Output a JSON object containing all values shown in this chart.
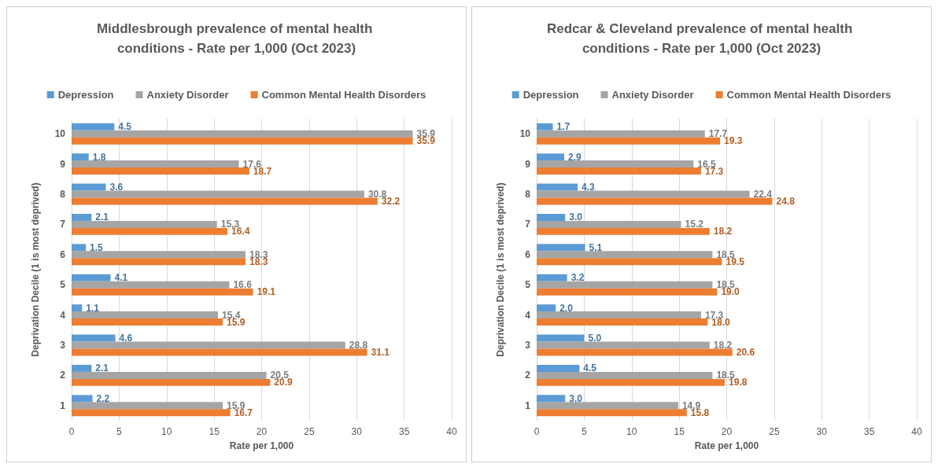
{
  "chart_data": [
    {
      "type": "bar",
      "orientation": "horizontal",
      "title": "Middlesbrough prevalence of mental health conditions - Rate per 1,000 (Oct 2023)",
      "xlabel": "Rate per 1,000",
      "ylabel": "Deprivation Decile (1 is most deprived)",
      "categories": [
        "10",
        "9",
        "8",
        "7",
        "6",
        "5",
        "4",
        "3",
        "2",
        "1"
      ],
      "xlim": [
        0,
        40
      ],
      "xticks": [
        0,
        5,
        10,
        15,
        20,
        25,
        30,
        35,
        40
      ],
      "grid": "x",
      "legend": "top",
      "series": [
        {
          "name": "Depression",
          "color": "#5b9bd5",
          "values": [
            4.5,
            1.8,
            3.6,
            2.1,
            1.5,
            4.1,
            1.1,
            4.6,
            2.1,
            2.2
          ],
          "value_labels": [
            "4.5",
            "1.8",
            "3.6",
            "2.1",
            "1.5",
            "4.1",
            "1.1",
            "4.6",
            "2.1",
            "2.2"
          ]
        },
        {
          "name": "Anxiety Disorder",
          "color": "#a5a5a5",
          "values": [
            35.9,
            17.6,
            30.8,
            15.3,
            18.3,
            16.6,
            15.4,
            28.8,
            20.5,
            15.9
          ],
          "value_labels": [
            "35.9",
            "17.6",
            "30.8",
            "15.3",
            "18.3",
            "16.6",
            "15.4",
            "28.8",
            "20.5",
            "15.9"
          ]
        },
        {
          "name": "Common Mental Health Disorders",
          "color": "#ed7d31",
          "values": [
            35.9,
            18.7,
            32.2,
            16.4,
            18.3,
            19.1,
            15.9,
            31.1,
            20.9,
            16.7
          ],
          "value_labels": [
            "35.9",
            "18.7",
            "32.2",
            "16.4",
            "18.3",
            "19.1",
            "15.9",
            "31.1",
            "20.9",
            "16.7"
          ]
        }
      ]
    },
    {
      "type": "bar",
      "orientation": "horizontal",
      "title": "Redcar & Cleveland prevalence of mental health conditions - Rate per 1,000 (Oct 2023)",
      "xlabel": "Rate per 1,000",
      "ylabel": "Deprivation Decile (1 is most deprived)",
      "categories": [
        "10",
        "9",
        "8",
        "7",
        "6",
        "5",
        "4",
        "3",
        "2",
        "1"
      ],
      "xlim": [
        0,
        40
      ],
      "xticks": [
        0,
        5,
        10,
        15,
        20,
        25,
        30,
        35,
        40
      ],
      "grid": "x",
      "legend": "top",
      "series": [
        {
          "name": "Depression",
          "color": "#5b9bd5",
          "values": [
            1.7,
            2.9,
            4.3,
            3.0,
            5.1,
            3.2,
            2.0,
            5.0,
            4.5,
            3.0
          ],
          "value_labels": [
            "1.7",
            "2.9",
            "4.3",
            "3.0",
            "5.1",
            "3.2",
            "2.0",
            "5.0",
            "4.5",
            "3.0"
          ]
        },
        {
          "name": "Anxiety Disorder",
          "color": "#a5a5a5",
          "values": [
            17.7,
            16.5,
            22.4,
            15.2,
            18.5,
            18.5,
            17.3,
            18.2,
            18.5,
            14.9
          ],
          "value_labels": [
            "17.7",
            "16.5",
            "22.4",
            "15.2",
            "18.5",
            "18.5",
            "17.3",
            "18.2",
            "18.5",
            "14.9"
          ]
        },
        {
          "name": "Common Mental Health Disorders",
          "color": "#ed7d31",
          "values": [
            19.3,
            17.3,
            24.8,
            18.2,
            19.5,
            19.0,
            18.0,
            20.6,
            19.8,
            15.8
          ],
          "value_labels": [
            "19.3",
            "17.3",
            "24.8",
            "18.2",
            "19.5",
            "19.0",
            "18.0",
            "20.6",
            "19.8",
            "15.8"
          ]
        }
      ]
    }
  ]
}
